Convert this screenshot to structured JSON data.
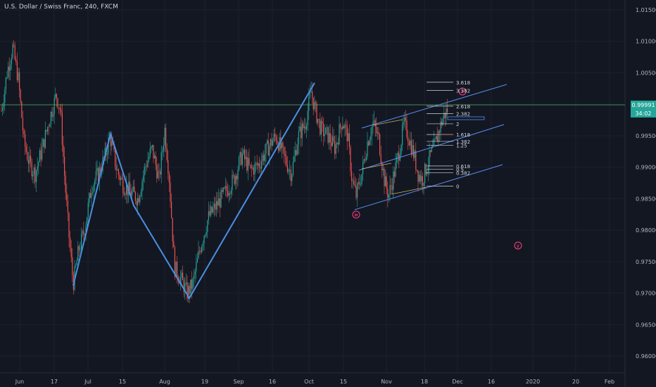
{
  "title": "U.S. Dollar / Swiss Franc, 240, FXCM",
  "colors": {
    "background": "#131722",
    "up": "#26a69a",
    "down": "#ef5350",
    "wave_line": "#4a90e2",
    "channel": "#5b8def",
    "horizontal": "#4caf50",
    "price_badge": "#26a69a",
    "fib_line": "#d1d4dc",
    "wave_label": "#ff4081"
  },
  "chart_data": {
    "type": "candlestick",
    "ylim": [
      0.9575,
      1.0175
    ],
    "y_ticks": [
      "1.01500",
      "1.01000",
      "1.00500",
      "1.00000",
      "0.99500",
      "0.99000",
      "0.98500",
      "0.98000",
      "0.97500",
      "0.97000",
      "0.96500",
      "0.96000"
    ],
    "x_ticks": [
      "Jun",
      "17",
      "Jul",
      "15",
      "Aug",
      "19",
      "Sep",
      "16",
      "Oct",
      "15",
      "Nov",
      "18",
      "Dec",
      "16",
      "2020",
      "20",
      "Feb"
    ],
    "current_price": "0.99991",
    "countdown": "34:02",
    "fib_levels": [
      {
        "label": "3.618",
        "value": 1.0035
      },
      {
        "label": "3.382",
        "value": 1.0022
      },
      {
        "label": "2.618",
        "value": 0.9997
      },
      {
        "label": "2.382",
        "value": 0.9985
      },
      {
        "label": "2",
        "value": 0.9969
      },
      {
        "label": "1.618",
        "value": 0.9952
      },
      {
        "label": "1.382",
        "value": 0.9941
      },
      {
        "label": "1.25",
        "value": 0.9935
      },
      {
        "label": "0.618",
        "value": 0.9902
      },
      {
        "label": "0.5",
        "value": 0.9897
      },
      {
        "label": "0.382",
        "value": 0.9891
      },
      {
        "label": "0",
        "value": 0.987
      }
    ],
    "wave_labels": [
      "w",
      "x",
      "y"
    ],
    "zigzag": [
      {
        "date": "Jun 24",
        "value": 0.9712
      },
      {
        "date": "Jul 10",
        "value": 0.9953
      },
      {
        "date": "Jul 25",
        "value": 0.9839
      },
      {
        "date": "Aug 12",
        "value": 0.9692
      },
      {
        "date": "Oct 1",
        "value": 1.0034
      }
    ]
  }
}
